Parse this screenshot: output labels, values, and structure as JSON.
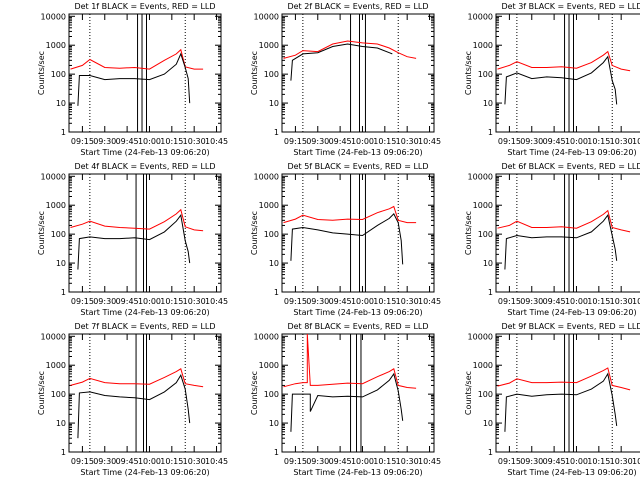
{
  "chart_data": [
    {
      "type": "line",
      "title": "Det 1f BLACK = Events, RED = LLD",
      "xlabel": "Start Time (24-Feb-13 09:06:20)",
      "ylabel": "Counts/sec",
      "yscale": "log",
      "ylim": [
        1,
        12000
      ],
      "xlim": [
        "09:06",
        "10:48"
      ],
      "x_ticks": [
        "09:15",
        "09:30",
        "09:45",
        "10:00",
        "10:15",
        "10:30",
        "10:45"
      ],
      "y_ticks": [
        "1",
        "10",
        "100",
        "1000",
        "10000"
      ],
      "solid_vlines": [
        "09:52",
        "09:55",
        "09:58"
      ],
      "dotted_vlines": [
        "09:20",
        "10:24"
      ],
      "series": [
        {
          "name": "BLACK = Events",
          "color": "#000000",
          "x": [
            "09:12",
            "09:13",
            "09:20",
            "09:30",
            "09:40",
            "09:50",
            "10:00",
            "10:10",
            "10:18",
            "10:21",
            "10:24",
            "10:26",
            "10:27"
          ],
          "values": [
            8,
            90,
            90,
            65,
            70,
            70,
            65,
            100,
            220,
            500,
            170,
            70,
            10
          ]
        },
        {
          "name": "RED = LLD",
          "color": "#ff0000",
          "x": [
            "09:07",
            "09:15",
            "09:20",
            "09:30",
            "09:40",
            "09:50",
            "10:00",
            "10:10",
            "10:18",
            "10:21",
            "10:24",
            "10:30",
            "10:36"
          ],
          "values": [
            150,
            200,
            320,
            170,
            160,
            170,
            150,
            300,
            500,
            700,
            180,
            150,
            150
          ]
        }
      ]
    },
    {
      "type": "line",
      "title": "Det 2f BLACK = Events, RED = LLD",
      "xlabel": "Start Time (24-Feb-13 09:06:20)",
      "ylabel": "Counts/sec",
      "yscale": "log",
      "ylim": [
        1,
        12000
      ],
      "xlim": [
        "09:06",
        "10:48"
      ],
      "x_ticks": [
        "09:15",
        "09:30",
        "09:45",
        "10:00",
        "10:15",
        "10:30",
        "10:45"
      ],
      "y_ticks": [
        "1",
        "10",
        "100",
        "1000",
        "10000"
      ],
      "solid_vlines": [
        "09:52",
        "09:58",
        "10:02"
      ],
      "dotted_vlines": [
        "09:20",
        "10:24"
      ],
      "series": [
        {
          "name": "BLACK = Events",
          "color": "#000000",
          "x": [
            "09:12",
            "09:13",
            "09:20",
            "09:30",
            "09:40",
            "09:50",
            "10:00",
            "10:10",
            "10:18",
            "10:20"
          ],
          "values": [
            60,
            300,
            500,
            550,
            900,
            1100,
            900,
            800,
            550,
            500
          ]
        },
        {
          "name": "RED = LLD",
          "color": "#ff0000",
          "x": [
            "09:07",
            "09:15",
            "09:20",
            "09:30",
            "09:40",
            "09:50",
            "10:00",
            "10:10",
            "10:18",
            "10:24",
            "10:30",
            "10:36"
          ],
          "values": [
            350,
            450,
            650,
            600,
            1100,
            1400,
            1200,
            1100,
            800,
            550,
            400,
            350
          ]
        }
      ]
    },
    {
      "type": "line",
      "title": "Det 3f BLACK = Events, RED = LLD",
      "xlabel": "Start Time (24-Feb-13 09:06:20)",
      "ylabel": "Counts/sec",
      "yscale": "log",
      "ylim": [
        1,
        12000
      ],
      "xlim": [
        "09:06",
        "10:48"
      ],
      "x_ticks": [
        "09:15",
        "09:30",
        "09:45",
        "10:00",
        "10:15",
        "10:30",
        "10:45"
      ],
      "y_ticks": [
        "1",
        "10",
        "100",
        "1000",
        "10000"
      ],
      "solid_vlines": [
        "09:52",
        "09:55",
        "09:58"
      ],
      "dotted_vlines": [
        "09:20",
        "10:24"
      ],
      "series": [
        {
          "name": "BLACK = Events",
          "color": "#000000",
          "x": [
            "09:12",
            "09:13",
            "09:20",
            "09:30",
            "09:40",
            "09:50",
            "10:00",
            "10:10",
            "10:18",
            "10:21",
            "10:24",
            "10:26",
            "10:27"
          ],
          "values": [
            9,
            80,
            110,
            70,
            80,
            75,
            65,
            110,
            250,
            400,
            60,
            30,
            9
          ]
        },
        {
          "name": "RED = LLD",
          "color": "#ff0000",
          "x": [
            "09:07",
            "09:15",
            "09:20",
            "09:30",
            "09:40",
            "09:50",
            "10:00",
            "10:10",
            "10:18",
            "10:21",
            "10:24",
            "10:30",
            "10:36"
          ],
          "values": [
            150,
            200,
            270,
            170,
            170,
            180,
            160,
            250,
            450,
            600,
            200,
            150,
            130
          ]
        }
      ]
    },
    {
      "type": "line",
      "title": "Det 4f BLACK = Events, RED = LLD",
      "xlabel": "Start Time (24-Feb-13 09:06:20)",
      "ylabel": "Counts/sec",
      "yscale": "log",
      "ylim": [
        1,
        12000
      ],
      "xlim": [
        "09:06",
        "10:48"
      ],
      "x_ticks": [
        "09:15",
        "09:30",
        "09:45",
        "10:00",
        "10:15",
        "10:30",
        "10:45"
      ],
      "y_ticks": [
        "1",
        "10",
        "100",
        "1000",
        "10000"
      ],
      "solid_vlines": [
        "09:51",
        "09:56",
        "09:58"
      ],
      "dotted_vlines": [
        "09:20",
        "10:24"
      ],
      "series": [
        {
          "name": "BLACK = Events",
          "color": "#000000",
          "x": [
            "09:12",
            "09:13",
            "09:20",
            "09:30",
            "09:40",
            "09:50",
            "10:00",
            "10:10",
            "10:18",
            "10:21",
            "10:24",
            "10:26",
            "10:27"
          ],
          "values": [
            6,
            70,
            80,
            70,
            70,
            75,
            65,
            120,
            280,
            450,
            60,
            25,
            10
          ]
        },
        {
          "name": "RED = LLD",
          "color": "#ff0000",
          "x": [
            "09:07",
            "09:15",
            "09:20",
            "09:30",
            "09:40",
            "09:50",
            "10:00",
            "10:10",
            "10:18",
            "10:21",
            "10:24",
            "10:30",
            "10:36"
          ],
          "values": [
            170,
            220,
            280,
            190,
            170,
            160,
            150,
            270,
            500,
            700,
            180,
            140,
            130
          ]
        }
      ]
    },
    {
      "type": "line",
      "title": "Det 5f BLACK = Events, RED = LLD",
      "xlabel": "Start Time (24-Feb-13 09:06:20)",
      "ylabel": "Counts/sec",
      "yscale": "log",
      "ylim": [
        1,
        12000
      ],
      "xlim": [
        "09:06",
        "10:48"
      ],
      "x_ticks": [
        "09:15",
        "09:30",
        "09:45",
        "10:00",
        "10:15",
        "10:30",
        "10:45"
      ],
      "y_ticks": [
        "1",
        "10",
        "100",
        "1000",
        "10000"
      ],
      "solid_vlines": [
        "09:52",
        "09:58",
        "10:02"
      ],
      "dotted_vlines": [
        "09:20",
        "10:24"
      ],
      "series": [
        {
          "name": "BLACK = Events",
          "color": "#000000",
          "x": [
            "09:12",
            "09:13",
            "09:20",
            "09:30",
            "09:40",
            "09:50",
            "10:00",
            "10:10",
            "10:18",
            "10:21",
            "10:24",
            "10:26",
            "10:27"
          ],
          "values": [
            12,
            150,
            170,
            140,
            110,
            100,
            90,
            200,
            350,
            500,
            250,
            60,
            9
          ]
        },
        {
          "name": "RED = LLD",
          "color": "#ff0000",
          "x": [
            "09:07",
            "09:15",
            "09:20",
            "09:30",
            "09:40",
            "09:50",
            "10:00",
            "10:10",
            "10:18",
            "10:21",
            "10:24",
            "10:30",
            "10:36"
          ],
          "values": [
            250,
            330,
            450,
            320,
            300,
            330,
            320,
            550,
            750,
            900,
            300,
            250,
            250
          ]
        }
      ]
    },
    {
      "type": "line",
      "title": "Det 6f BLACK = Events, RED = LLD",
      "xlabel": "Start Time (24-Feb-13 09:06:20)",
      "ylabel": "Counts/sec",
      "yscale": "log",
      "ylim": [
        1,
        12000
      ],
      "xlim": [
        "09:06",
        "10:48"
      ],
      "x_ticks": [
        "09:15",
        "09:30",
        "09:45",
        "10:00",
        "10:15",
        "10:30",
        "10:45"
      ],
      "y_ticks": [
        "1",
        "10",
        "100",
        "1000",
        "10000"
      ],
      "solid_vlines": [
        "09:52",
        "09:55",
        "09:58"
      ],
      "dotted_vlines": [
        "09:20",
        "10:24"
      ],
      "series": [
        {
          "name": "BLACK = Events",
          "color": "#000000",
          "x": [
            "09:12",
            "09:13",
            "09:20",
            "09:30",
            "09:40",
            "09:50",
            "10:00",
            "10:10",
            "10:18",
            "10:21",
            "10:24",
            "10:26",
            "10:27"
          ],
          "values": [
            6,
            70,
            90,
            75,
            80,
            80,
            75,
            120,
            280,
            450,
            90,
            30,
            12
          ]
        },
        {
          "name": "RED = LLD",
          "color": "#ff0000",
          "x": [
            "09:07",
            "09:15",
            "09:20",
            "09:30",
            "09:40",
            "09:50",
            "10:00",
            "10:10",
            "10:18",
            "10:21",
            "10:24",
            "10:30",
            "10:36"
          ],
          "values": [
            160,
            200,
            280,
            170,
            170,
            180,
            160,
            270,
            480,
            650,
            170,
            140,
            120
          ]
        }
      ]
    },
    {
      "type": "line",
      "title": "Det 7f BLACK = Events, RED = LLD",
      "xlabel": "Start Time (24-Feb-13 09:06:20)",
      "ylabel": "Counts/sec",
      "yscale": "log",
      "ylim": [
        1,
        12000
      ],
      "xlim": [
        "09:06",
        "10:48"
      ],
      "x_ticks": [
        "09:15",
        "09:30",
        "09:45",
        "10:00",
        "10:15",
        "10:30",
        "10:45"
      ],
      "y_ticks": [
        "1",
        "10",
        "100",
        "1000",
        "10000"
      ],
      "solid_vlines": [
        "09:51",
        "09:56",
        "09:58"
      ],
      "dotted_vlines": [
        "09:20",
        "10:24"
      ],
      "series": [
        {
          "name": "BLACK = Events",
          "color": "#000000",
          "x": [
            "09:12",
            "09:13",
            "09:20",
            "09:30",
            "09:40",
            "09:50",
            "10:00",
            "10:10",
            "10:18",
            "10:21",
            "10:24",
            "10:26",
            "10:27"
          ],
          "values": [
            3,
            110,
            120,
            90,
            80,
            75,
            65,
            120,
            250,
            450,
            150,
            30,
            10
          ]
        },
        {
          "name": "RED = LLD",
          "color": "#ff0000",
          "x": [
            "09:07",
            "09:15",
            "09:20",
            "09:30",
            "09:40",
            "09:50",
            "10:00",
            "10:10",
            "10:18",
            "10:21",
            "10:24",
            "10:30",
            "10:36"
          ],
          "values": [
            200,
            260,
            350,
            250,
            230,
            230,
            220,
            380,
            600,
            750,
            230,
            200,
            180
          ]
        }
      ]
    },
    {
      "type": "line",
      "title": "Det 8f BLACK = Events, RED = LLD",
      "xlabel": "Start Time (24-Feb-13 09:06:20)",
      "ylabel": "Counts/sec",
      "yscale": "log",
      "ylim": [
        1,
        12000
      ],
      "xlim": [
        "09:06",
        "10:48"
      ],
      "x_ticks": [
        "09:15",
        "09:30",
        "09:45",
        "10:00",
        "10:15",
        "10:30",
        "10:45"
      ],
      "y_ticks": [
        "1",
        "10",
        "100",
        "1000",
        "10000"
      ],
      "solid_vlines": [
        "09:52",
        "09:56",
        "09:59"
      ],
      "dotted_vlines": [
        "09:20",
        "10:24"
      ],
      "series": [
        {
          "name": "BLACK = Events",
          "color": "#000000",
          "x": [
            "09:12",
            "09:13",
            "09:20",
            "09:25",
            "09:25",
            "09:30",
            "09:40",
            "09:50",
            "10:00",
            "10:10",
            "10:18",
            "10:21",
            "10:24",
            "10:26",
            "10:27"
          ],
          "values": [
            5,
            100,
            100,
            100,
            25,
            90,
            80,
            85,
            80,
            140,
            300,
            500,
            130,
            30,
            12
          ]
        },
        {
          "name": "RED = LLD",
          "color": "#ff0000",
          "x": [
            "09:07",
            "09:15",
            "09:20",
            "09:23",
            "09:23",
            "09:25",
            "09:30",
            "09:40",
            "09:50",
            "10:00",
            "10:10",
            "10:18",
            "10:21",
            "10:24",
            "10:30",
            "10:36"
          ],
          "values": [
            180,
            230,
            250,
            250,
            12000,
            200,
            200,
            220,
            240,
            230,
            400,
            600,
            750,
            200,
            170,
            160
          ]
        }
      ]
    },
    {
      "type": "line",
      "title": "Det 9f BLACK = Events, RED = LLD",
      "xlabel": "Start Time (24-Feb-13 09:06:20)",
      "ylabel": "Counts/sec",
      "yscale": "log",
      "ylim": [
        1,
        12000
      ],
      "xlim": [
        "09:06",
        "10:48"
      ],
      "x_ticks": [
        "09:15",
        "09:30",
        "09:45",
        "10:00",
        "10:15",
        "10:30",
        "10:45"
      ],
      "y_ticks": [
        "1",
        "10",
        "100",
        "1000",
        "10000"
      ],
      "solid_vlines": [
        "09:52",
        "09:55",
        "09:58"
      ],
      "dotted_vlines": [
        "09:20",
        "10:24"
      ],
      "series": [
        {
          "name": "BLACK = Events",
          "color": "#000000",
          "x": [
            "09:12",
            "09:13",
            "09:20",
            "09:30",
            "09:40",
            "09:50",
            "10:00",
            "10:10",
            "10:18",
            "10:21",
            "10:24",
            "10:26",
            "10:27"
          ],
          "values": [
            5,
            80,
            100,
            85,
            95,
            100,
            95,
            150,
            280,
            500,
            90,
            20,
            8
          ]
        },
        {
          "name": "RED = LLD",
          "color": "#ff0000",
          "x": [
            "09:07",
            "09:15",
            "09:20",
            "09:30",
            "09:40",
            "09:50",
            "10:00",
            "10:10",
            "10:18",
            "10:21",
            "10:24",
            "10:30",
            "10:36"
          ],
          "values": [
            190,
            240,
            340,
            250,
            250,
            260,
            250,
            420,
            650,
            800,
            200,
            170,
            140
          ]
        }
      ]
    }
  ]
}
